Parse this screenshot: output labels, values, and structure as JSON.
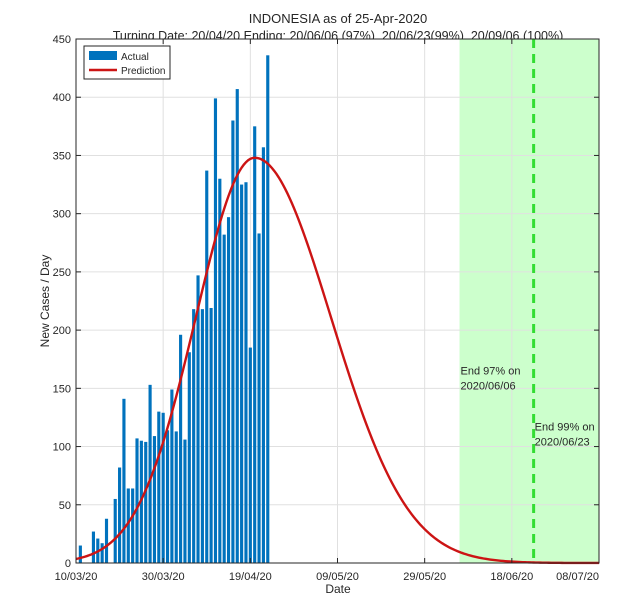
{
  "chart_data": {
    "type": "bar",
    "title": "INDONESIA as of 25-Apr-2020",
    "subtitle": "Turning Date: 20/04/20   Ending: 20/06/06 (97%), 20/06/23(99%), 20/09/06 (100%)",
    "xlabel": "Date",
    "ylabel": "New Cases / Day",
    "ylim": [
      0,
      450
    ],
    "xlim_days": [
      0,
      120
    ],
    "yticks": [
      0,
      50,
      100,
      150,
      200,
      250,
      300,
      350,
      400,
      450
    ],
    "xticks": [
      {
        "day": 0,
        "label": "10/03/20"
      },
      {
        "day": 20,
        "label": "30/03/20"
      },
      {
        "day": 40,
        "label": "19/04/20"
      },
      {
        "day": 60,
        "label": "09/05/20"
      },
      {
        "day": 80,
        "label": "29/05/20"
      },
      {
        "day": 100,
        "label": "18/06/20"
      },
      {
        "day": 120,
        "label": "08/07/20"
      }
    ],
    "grid": true,
    "legend": {
      "position": "top-left",
      "entries": [
        "Actual",
        "Prediction"
      ]
    },
    "series": [
      {
        "name": "Actual",
        "type": "bar",
        "start_day": 1,
        "values": [
          15,
          0,
          0,
          27,
          21,
          17,
          38,
          0,
          55,
          82,
          141,
          64,
          64,
          107,
          105,
          104,
          153,
          109,
          130,
          129,
          114,
          149,
          113,
          196,
          106,
          181,
          218,
          247,
          218,
          337,
          219,
          399,
          330,
          282,
          297,
          380,
          407,
          325,
          327,
          185,
          375,
          283,
          357,
          436
        ]
      },
      {
        "name": "Prediction",
        "type": "line",
        "model": "gaussian",
        "peak": 348,
        "peak_day": 41,
        "sigma_left": 13.5,
        "sigma_right": 17.5
      }
    ],
    "shaded_region": {
      "from_day": 88,
      "to_day": 120
    },
    "vlines": [
      {
        "day": 105,
        "style": "dashed"
      }
    ],
    "annotations": [
      {
        "text": [
          "End 97% on",
          "2020/06/06"
        ],
        "day": 88,
        "value": 162
      },
      {
        "text": [
          "End 99% on",
          "2020/06/23"
        ],
        "day": 105,
        "value": 114
      }
    ],
    "colors": {
      "bar": "#0072BD",
      "line": "#CC1414",
      "shade": "#CCFFCC",
      "vline": "#33DD33",
      "grid": "#E0E0E0"
    }
  }
}
